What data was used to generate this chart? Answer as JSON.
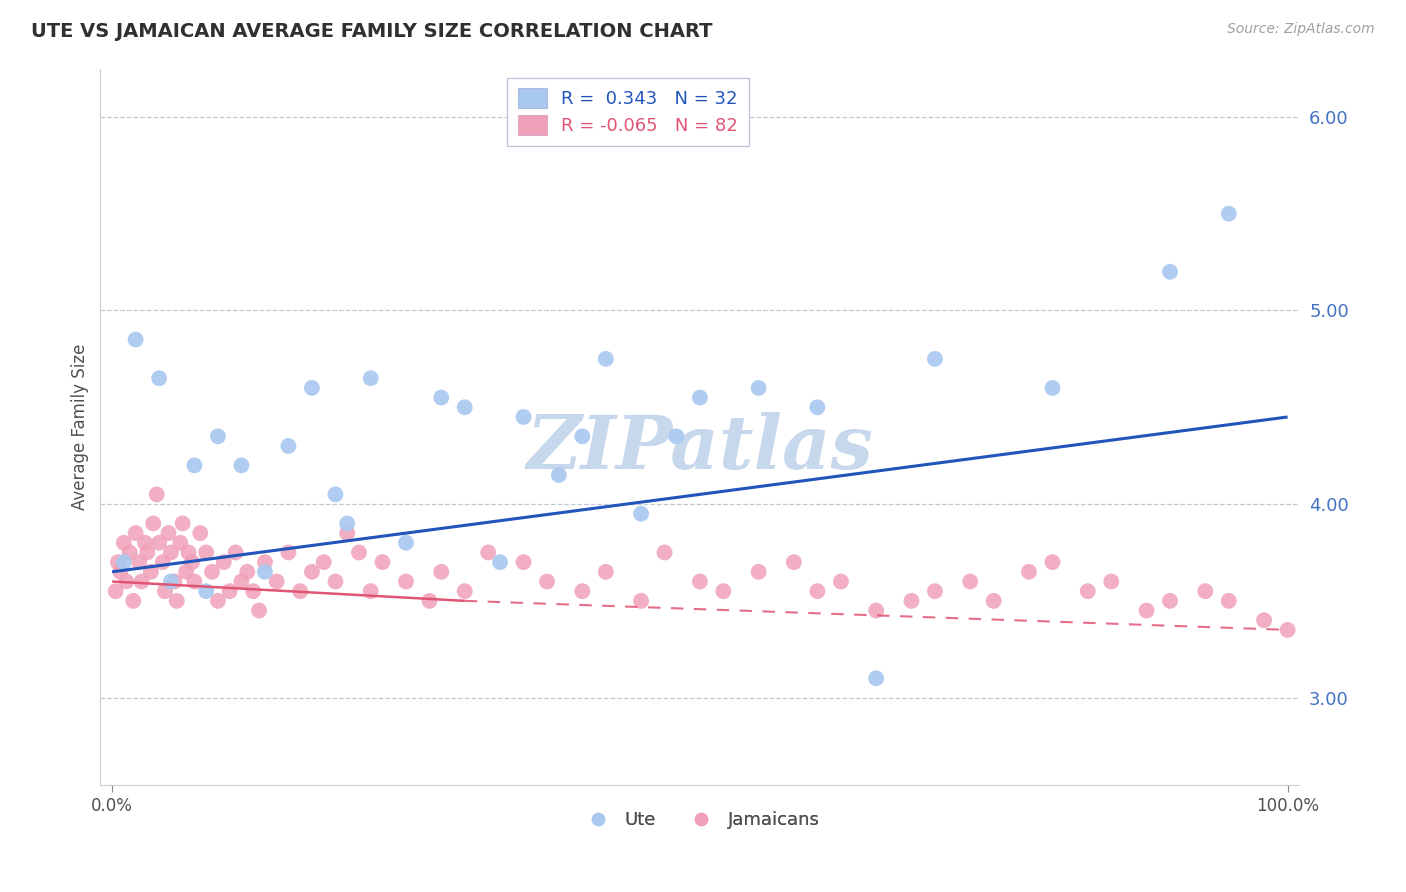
{
  "title": "UTE VS JAMAICAN AVERAGE FAMILY SIZE CORRELATION CHART",
  "source": "Source: ZipAtlas.com",
  "ylabel": "Average Family Size",
  "ute_color": "#A8C8F0",
  "jamaican_color": "#F0A0B8",
  "ute_line_color": "#2255BB",
  "jamaican_line_color": "#E05575",
  "background_color": "#FFFFFF",
  "grid_color": "#C0C8D8",
  "watermark": "ZIPatlas",
  "watermark_color": "#C8D8EC",
  "R_ute": 0.343,
  "N_ute": 32,
  "R_jamaican": -0.065,
  "N_jamaican": 82,
  "ylim": [
    2.55,
    6.25
  ],
  "xlim": [
    -1,
    101
  ],
  "yticks": [
    3.0,
    4.0,
    5.0,
    6.0
  ],
  "xticks": [
    0,
    100
  ],
  "xtick_labels": [
    "0.0%",
    "100.0%"
  ],
  "ytick_labels": [
    "3.00",
    "4.00",
    "5.00",
    "6.00"
  ],
  "ute_x": [
    1,
    2,
    4,
    5,
    7,
    8,
    9,
    11,
    13,
    15,
    17,
    19,
    20,
    22,
    25,
    28,
    30,
    33,
    35,
    38,
    40,
    42,
    45,
    48,
    50,
    55,
    60,
    65,
    70,
    80,
    90,
    95
  ],
  "ute_y": [
    3.7,
    4.85,
    4.65,
    3.6,
    4.2,
    3.55,
    4.35,
    4.2,
    3.65,
    4.3,
    4.6,
    4.05,
    3.9,
    4.65,
    3.8,
    4.55,
    4.5,
    3.7,
    4.45,
    4.15,
    4.35,
    4.75,
    3.95,
    4.35,
    4.55,
    4.6,
    4.5,
    3.1,
    4.75,
    4.6,
    5.2,
    5.5
  ],
  "jamaican_x": [
    0.3,
    0.5,
    0.7,
    1.0,
    1.2,
    1.5,
    1.8,
    2.0,
    2.3,
    2.5,
    2.8,
    3.0,
    3.3,
    3.5,
    3.8,
    4.0,
    4.3,
    4.5,
    4.8,
    5.0,
    5.3,
    5.5,
    5.8,
    6.0,
    6.3,
    6.5,
    6.8,
    7.0,
    7.5,
    8.0,
    8.5,
    9.0,
    9.5,
    10.0,
    10.5,
    11.0,
    11.5,
    12.0,
    12.5,
    13.0,
    14.0,
    15.0,
    16.0,
    17.0,
    18.0,
    19.0,
    20.0,
    21.0,
    22.0,
    23.0,
    25.0,
    27.0,
    28.0,
    30.0,
    32.0,
    35.0,
    37.0,
    40.0,
    42.0,
    45.0,
    47.0,
    50.0,
    52.0,
    55.0,
    58.0,
    60.0,
    62.0,
    65.0,
    68.0,
    70.0,
    73.0,
    75.0,
    78.0,
    80.0,
    83.0,
    85.0,
    88.0,
    90.0,
    93.0,
    95.0,
    98.0,
    100.0
  ],
  "jamaican_y": [
    3.55,
    3.7,
    3.65,
    3.8,
    3.6,
    3.75,
    3.5,
    3.85,
    3.7,
    3.6,
    3.8,
    3.75,
    3.65,
    3.9,
    4.05,
    3.8,
    3.7,
    3.55,
    3.85,
    3.75,
    3.6,
    3.5,
    3.8,
    3.9,
    3.65,
    3.75,
    3.7,
    3.6,
    3.85,
    3.75,
    3.65,
    3.5,
    3.7,
    3.55,
    3.75,
    3.6,
    3.65,
    3.55,
    3.45,
    3.7,
    3.6,
    3.75,
    3.55,
    3.65,
    3.7,
    3.6,
    3.85,
    3.75,
    3.55,
    3.7,
    3.6,
    3.5,
    3.65,
    3.55,
    3.75,
    3.7,
    3.6,
    3.55,
    3.65,
    3.5,
    3.75,
    3.6,
    3.55,
    3.65,
    3.7,
    3.55,
    3.6,
    3.45,
    3.5,
    3.55,
    3.6,
    3.5,
    3.65,
    3.7,
    3.55,
    3.6,
    3.45,
    3.5,
    3.55,
    3.5,
    3.4,
    3.35
  ],
  "ute_line_x0": 0,
  "ute_line_y0": 3.65,
  "ute_line_x1": 100,
  "ute_line_y1": 4.45,
  "jam_line_solid_x0": 0,
  "jam_line_solid_y0": 3.6,
  "jam_line_solid_x1": 30,
  "jam_line_solid_y1": 3.5,
  "jam_line_dash_x0": 30,
  "jam_line_dash_y0": 3.5,
  "jam_line_dash_x1": 100,
  "jam_line_dash_y1": 3.35
}
